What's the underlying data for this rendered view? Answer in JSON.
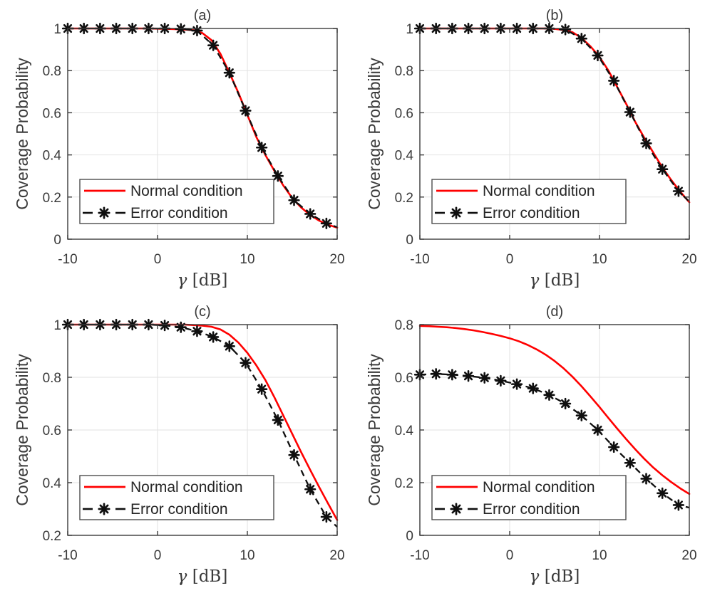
{
  "figure": {
    "background": "#ffffff",
    "axis_color": "#3a3a3a",
    "grid_color": "#e2e2e2",
    "text_color": "#3a3a3a",
    "legend_text_color": "#262626",
    "normal_color": "#ff0000",
    "error_color": "#0f0f0f"
  },
  "chart_data": [
    {
      "type": "line",
      "title": "(a)",
      "xlabel": "γ [dB]",
      "ylabel": "Coverage Probability",
      "xlim": [
        -10,
        20
      ],
      "ylim": [
        0,
        1
      ],
      "xticks": [
        -10,
        0,
        10,
        20
      ],
      "yticks": [
        0,
        0.2,
        0.4,
        0.6,
        0.8,
        1
      ],
      "grid": true,
      "legend_position": "southwest",
      "series": [
        {
          "name": "Normal condition",
          "style": "solid",
          "color": "#ff0000",
          "x": [
            -10,
            -9,
            -8,
            -7,
            -6,
            -5,
            -4,
            -3,
            -2,
            -1,
            0,
            1,
            2,
            3,
            4,
            5,
            6,
            7,
            8,
            9,
            10,
            11,
            12,
            13,
            14,
            15,
            16,
            17,
            18,
            19,
            20
          ],
          "y": [
            1,
            1,
            1,
            1,
            1,
            1,
            1,
            1,
            1,
            1,
            0.999,
            0.998,
            0.997,
            0.995,
            0.992,
            0.978,
            0.945,
            0.88,
            0.79,
            0.695,
            0.59,
            0.485,
            0.4,
            0.325,
            0.255,
            0.195,
            0.15,
            0.115,
            0.088,
            0.068,
            0.055
          ]
        },
        {
          "name": "Error condition",
          "style": "dash-asterisk",
          "color": "#0f0f0f",
          "marker_on_last": false,
          "x": [
            -10,
            -8.2,
            -6.4,
            -4.6,
            -2.8,
            -1,
            0.8,
            2.6,
            4.4,
            6.2,
            8,
            9.8,
            11.6,
            13.4,
            15.2,
            17,
            18.8,
            20
          ],
          "y": [
            1,
            1,
            1,
            1,
            1,
            1,
            1,
            0.998,
            0.99,
            0.92,
            0.79,
            0.61,
            0.435,
            0.3,
            0.185,
            0.12,
            0.075,
            0.057
          ]
        }
      ]
    },
    {
      "type": "line",
      "title": "(b)",
      "xlabel": "γ [dB]",
      "ylabel": "Coverage Probability",
      "xlim": [
        -10,
        20
      ],
      "ylim": [
        0,
        1
      ],
      "xticks": [
        -10,
        0,
        10,
        20
      ],
      "yticks": [
        0,
        0.2,
        0.4,
        0.6,
        0.8,
        1
      ],
      "grid": true,
      "legend_position": "southwest",
      "series": [
        {
          "name": "Normal condition",
          "style": "solid",
          "color": "#ff0000",
          "x": [
            -10,
            -9,
            -8,
            -7,
            -6,
            -5,
            -4,
            -3,
            -2,
            -1,
            0,
            1,
            2,
            3,
            4,
            5,
            6,
            7,
            8,
            9,
            10,
            11,
            12,
            13,
            14,
            15,
            16,
            17,
            18,
            19,
            20
          ],
          "y": [
            1,
            1,
            1,
            1,
            1,
            1,
            1,
            1,
            1,
            1,
            1,
            1,
            1,
            1,
            1,
            0.998,
            0.993,
            0.982,
            0.955,
            0.915,
            0.865,
            0.8,
            0.72,
            0.64,
            0.555,
            0.48,
            0.41,
            0.34,
            0.28,
            0.225,
            0.175
          ]
        },
        {
          "name": "Error condition",
          "style": "dash-asterisk",
          "color": "#0f0f0f",
          "marker_on_last": false,
          "x": [
            -10,
            -8.2,
            -6.4,
            -4.6,
            -2.8,
            -1,
            0.8,
            2.6,
            4.4,
            6.2,
            8,
            9.8,
            11.6,
            13.4,
            15.2,
            17,
            18.8,
            20
          ],
          "y": [
            1,
            1,
            1,
            1,
            1,
            1,
            1,
            1,
            1,
            0.995,
            0.952,
            0.872,
            0.752,
            0.603,
            0.455,
            0.332,
            0.228,
            0.178
          ]
        }
      ]
    },
    {
      "type": "line",
      "title": "(c)",
      "xlabel": "γ [dB]",
      "ylabel": "Coverage Probability",
      "xlim": [
        -10,
        20
      ],
      "ylim": [
        0.2,
        1
      ],
      "xticks": [
        -10,
        0,
        10,
        20
      ],
      "yticks": [
        0.2,
        0.4,
        0.6,
        0.8,
        1
      ],
      "grid": true,
      "legend_position": "southwest",
      "series": [
        {
          "name": "Normal condition",
          "style": "solid",
          "color": "#ff0000",
          "x": [
            -10,
            -9,
            -8,
            -7,
            -6,
            -5,
            -4,
            -3,
            -2,
            -1,
            0,
            1,
            2,
            3,
            4,
            5,
            6,
            7,
            8,
            9,
            10,
            11,
            12,
            13,
            14,
            15,
            16,
            17,
            18,
            19,
            20
          ],
          "y": [
            1,
            1,
            1,
            1,
            1,
            1,
            1,
            1,
            1,
            1,
            1,
            1,
            1,
            1,
            0.998,
            0.996,
            0.992,
            0.982,
            0.962,
            0.932,
            0.893,
            0.845,
            0.79,
            0.725,
            0.655,
            0.585,
            0.515,
            0.448,
            0.383,
            0.32,
            0.258
          ]
        },
        {
          "name": "Error condition",
          "style": "dash-asterisk",
          "color": "#0f0f0f",
          "marker_on_last": false,
          "x": [
            -10,
            -8.2,
            -6.4,
            -4.6,
            -2.8,
            -1,
            0.8,
            2.6,
            4.4,
            6.2,
            8,
            9.8,
            11.6,
            13.4,
            15.2,
            17,
            18.8,
            20
          ],
          "y": [
            1,
            1,
            1,
            1,
            1,
            1,
            0.997,
            0.99,
            0.975,
            0.953,
            0.918,
            0.855,
            0.755,
            0.638,
            0.505,
            0.375,
            0.27,
            0.232
          ]
        }
      ]
    },
    {
      "type": "line",
      "title": "(d)",
      "xlabel": "γ [dB]",
      "ylabel": "Coverage Probability",
      "xlim": [
        -10,
        20
      ],
      "ylim": [
        0,
        0.8
      ],
      "xticks": [
        -10,
        0,
        10,
        20
      ],
      "yticks": [
        0,
        0.2,
        0.4,
        0.6,
        0.8
      ],
      "grid": true,
      "legend_position": "southwest",
      "series": [
        {
          "name": "Normal condition",
          "style": "solid",
          "color": "#ff0000",
          "x": [
            -10,
            -9,
            -8,
            -7,
            -6,
            -5,
            -4,
            -3,
            -2,
            -1,
            0,
            1,
            2,
            3,
            4,
            5,
            6,
            7,
            8,
            9,
            10,
            11,
            12,
            13,
            14,
            15,
            16,
            17,
            18,
            19,
            20
          ],
          "y": [
            0.795,
            0.794,
            0.792,
            0.79,
            0.787,
            0.783,
            0.778,
            0.772,
            0.765,
            0.757,
            0.748,
            0.737,
            0.723,
            0.706,
            0.686,
            0.662,
            0.634,
            0.602,
            0.566,
            0.527,
            0.487,
            0.445,
            0.404,
            0.364,
            0.326,
            0.29,
            0.257,
            0.228,
            0.202,
            0.178,
            0.157
          ]
        },
        {
          "name": "Error condition",
          "style": "dash-asterisk",
          "color": "#0f0f0f",
          "marker_on_last": false,
          "x": [
            -10,
            -8.2,
            -6.4,
            -4.6,
            -2.8,
            -1,
            0.8,
            2.6,
            4.4,
            6.2,
            8,
            9.8,
            11.6,
            13.4,
            15.2,
            17,
            18.8,
            20
          ],
          "y": [
            0.61,
            0.613,
            0.61,
            0.605,
            0.598,
            0.587,
            0.574,
            0.558,
            0.533,
            0.5,
            0.455,
            0.4,
            0.335,
            0.275,
            0.215,
            0.16,
            0.115,
            0.105
          ]
        }
      ]
    }
  ]
}
